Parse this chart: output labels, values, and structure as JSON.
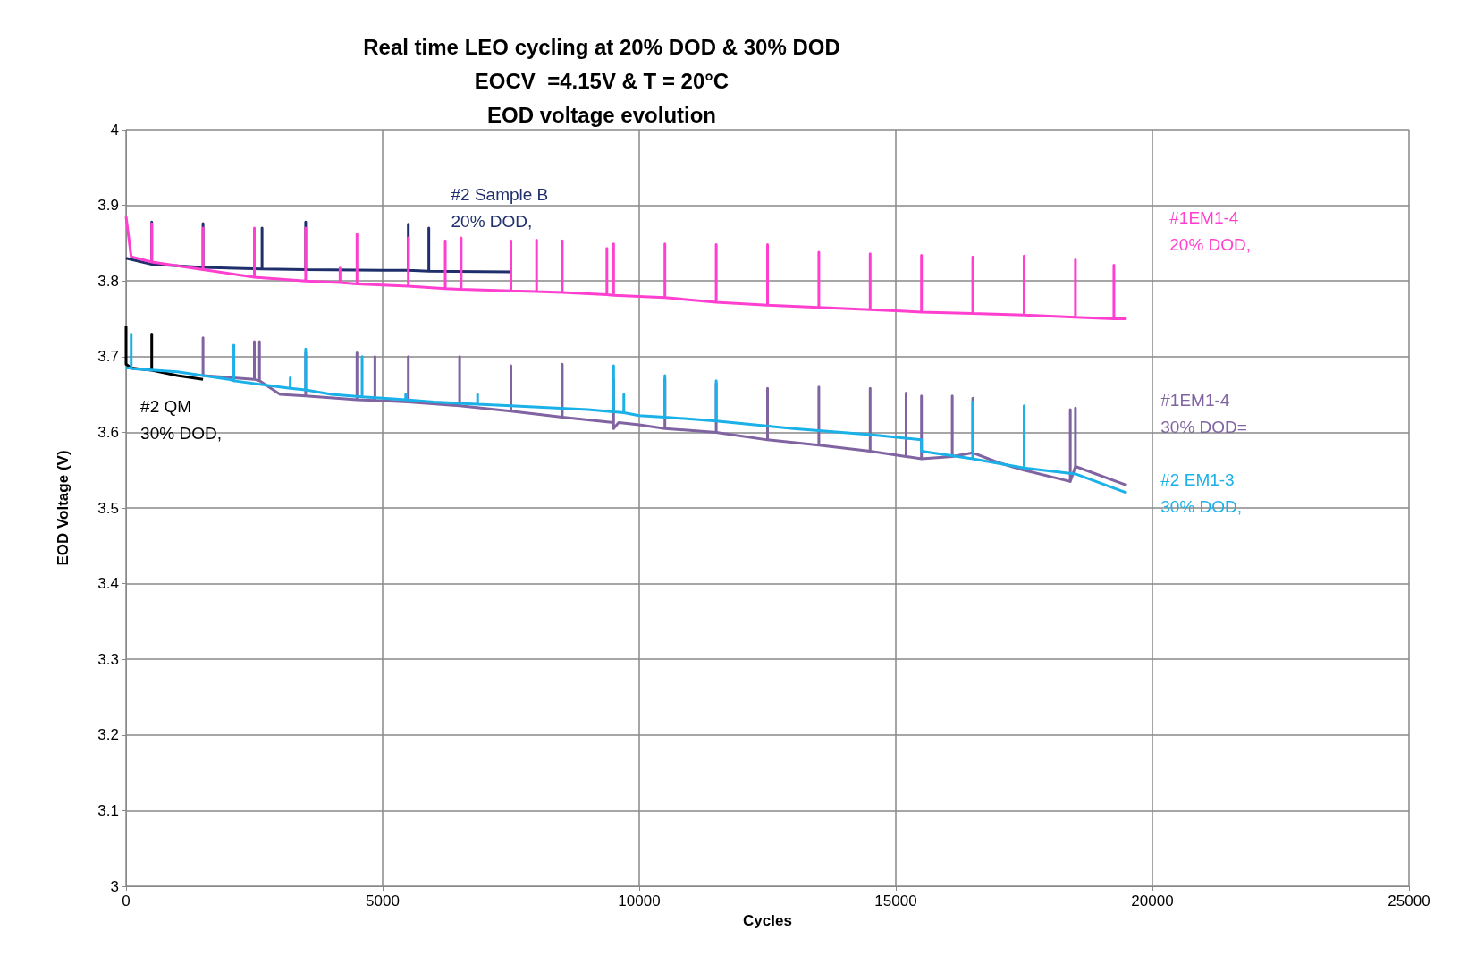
{
  "chart_data": {
    "type": "line",
    "title": "Real time LEO cycling at 20% DOD & 30% DOD\nEOCV  =4.15V & T = 20°C\nEOD voltage evolution",
    "xlabel": "Cycles",
    "ylabel": "EOD Voltage (V)",
    "xlim": [
      0,
      25000
    ],
    "xticks": [
      0,
      5000,
      10000,
      15000,
      20000,
      25000
    ],
    "ylim": [
      3,
      4
    ],
    "yticks": [
      3,
      3.1,
      3.2,
      3.3,
      3.4,
      3.5,
      3.6,
      3.7,
      3.8,
      3.9,
      4
    ],
    "grid": true,
    "legend": false,
    "marker": "none",
    "line_style": "solid",
    "series": [
      {
        "name": "#2 Sample B\n20% DOD,",
        "color": "#1f2f6b",
        "x": [
          0,
          500,
          500,
          500,
          1500,
          1500,
          1500,
          2650,
          2650,
          2650,
          3500,
          3500,
          3500,
          5000,
          5500,
          5500,
          5500,
          5900,
          5900,
          5900,
          7500
        ],
        "values": [
          3.83,
          3.822,
          3.878,
          3.822,
          3.818,
          3.876,
          3.818,
          3.816,
          3.87,
          3.816,
          3.815,
          3.878,
          3.815,
          3.814,
          3.814,
          3.875,
          3.814,
          3.813,
          3.87,
          3.813,
          3.812
        ]
      },
      {
        "name": "#1EM1-4\n20% DOD,",
        "color": "#ff3fcf",
        "x": [
          0,
          100,
          500,
          500,
          500,
          1500,
          1500,
          1500,
          2500,
          2500,
          2500,
          3500,
          3500,
          3500,
          4170,
          4170,
          4170,
          4500,
          4500,
          4500,
          5500,
          5500,
          5500,
          6220,
          6220,
          6220,
          6530,
          6530,
          6530,
          7500,
          7500,
          7500,
          8000,
          8000,
          8000,
          8500,
          8500,
          8500,
          9370,
          9370,
          9370,
          9500,
          9500,
          9500,
          10500,
          10500,
          10500,
          11500,
          11500,
          11500,
          12500,
          12500,
          12500,
          13500,
          13500,
          13500,
          14500,
          14500,
          14500,
          15500,
          15500,
          15500,
          16500,
          16500,
          16500,
          17500,
          17500,
          17500,
          18500,
          18500,
          18500,
          19250,
          19250,
          19250,
          19500
        ],
        "values": [
          3.885,
          3.832,
          3.825,
          3.876,
          3.825,
          3.815,
          3.87,
          3.815,
          3.805,
          3.87,
          3.805,
          3.8,
          3.87,
          3.8,
          3.798,
          3.817,
          3.798,
          3.796,
          3.862,
          3.796,
          3.793,
          3.857,
          3.793,
          3.79,
          3.853,
          3.79,
          3.789,
          3.857,
          3.789,
          3.787,
          3.853,
          3.787,
          3.786,
          3.854,
          3.786,
          3.785,
          3.853,
          3.785,
          3.782,
          3.843,
          3.782,
          3.781,
          3.849,
          3.781,
          3.778,
          3.849,
          3.778,
          3.772,
          3.848,
          3.772,
          3.768,
          3.848,
          3.768,
          3.765,
          3.838,
          3.765,
          3.762,
          3.836,
          3.762,
          3.759,
          3.834,
          3.759,
          3.757,
          3.832,
          3.757,
          3.755,
          3.833,
          3.755,
          3.752,
          3.828,
          3.752,
          3.75,
          3.821,
          3.75,
          3.75
        ]
      },
      {
        "name": "#2 QM\n30% DOD,",
        "color": "#000000",
        "x": [
          0,
          0,
          100,
          500,
          500,
          500,
          1000,
          1500
        ],
        "values": [
          3.74,
          3.69,
          3.685,
          3.682,
          3.73,
          3.682,
          3.675,
          3.67
        ]
      },
      {
        "name": "#1EM1-4\n30% DOD=",
        "color": "#8064a2",
        "x": [
          1500,
          1500,
          1500,
          2500,
          2500,
          2500,
          2600,
          2600,
          2600,
          3000,
          3500,
          3500,
          3500,
          4500,
          4500,
          4500,
          4850,
          4850,
          4850,
          5500,
          5500,
          5500,
          6500,
          6500,
          6500,
          7500,
          7500,
          7500,
          8500,
          8500,
          8500,
          9500,
          9500,
          9500,
          9600,
          10000,
          10500,
          10500,
          10500,
          11500,
          11500,
          11500,
          12500,
          12500,
          12500,
          13500,
          13500,
          13500,
          14500,
          14500,
          14500,
          15200,
          15200,
          15200,
          15500,
          15500,
          15500,
          16100,
          16100,
          16100,
          16500,
          16500,
          16500,
          17000,
          17500,
          18400,
          18400,
          18400,
          18500,
          18500,
          18500,
          19500
        ],
        "values": [
          3.68,
          3.725,
          3.675,
          3.67,
          3.72,
          3.67,
          3.668,
          3.72,
          3.668,
          3.65,
          3.648,
          3.705,
          3.648,
          3.643,
          3.705,
          3.643,
          3.642,
          3.7,
          3.642,
          3.64,
          3.7,
          3.64,
          3.635,
          3.7,
          3.635,
          3.628,
          3.688,
          3.628,
          3.62,
          3.69,
          3.62,
          3.613,
          3.67,
          3.605,
          3.613,
          3.61,
          3.605,
          3.67,
          3.605,
          3.6,
          3.665,
          3.6,
          3.59,
          3.658,
          3.59,
          3.583,
          3.66,
          3.583,
          3.575,
          3.658,
          3.575,
          3.568,
          3.652,
          3.568,
          3.565,
          3.648,
          3.565,
          3.568,
          3.648,
          3.568,
          3.573,
          3.645,
          3.573,
          3.56,
          3.55,
          3.535,
          3.63,
          3.535,
          3.555,
          3.632,
          3.555,
          3.53
        ]
      },
      {
        "name": "#2 EM1-3\n30% DOD,",
        "color": "#1ab0e8",
        "x": [
          0,
          100,
          100,
          100,
          1000,
          2000,
          2100,
          2100,
          2100,
          3000,
          3200,
          3200,
          3200,
          3500,
          3500,
          3500,
          4000,
          4600,
          4600,
          4600,
          5000,
          5450,
          5450,
          5450,
          6000,
          6850,
          6850,
          6850,
          7500,
          9000,
          9500,
          9500,
          9500,
          9700,
          9700,
          9700,
          10000,
          10500,
          10500,
          10500,
          11500,
          11500,
          11500,
          13000,
          14500,
          15500,
          15500,
          16500,
          16500,
          16500,
          17500,
          17500,
          17500,
          18500,
          19500
        ],
        "values": [
          3.685,
          3.685,
          3.73,
          3.684,
          3.68,
          3.67,
          3.668,
          3.715,
          3.668,
          3.66,
          3.658,
          3.672,
          3.658,
          3.656,
          3.71,
          3.656,
          3.65,
          3.647,
          3.7,
          3.647,
          3.645,
          3.643,
          3.65,
          3.643,
          3.64,
          3.637,
          3.65,
          3.637,
          3.635,
          3.63,
          3.627,
          3.688,
          3.627,
          3.626,
          3.65,
          3.626,
          3.622,
          3.62,
          3.675,
          3.62,
          3.615,
          3.668,
          3.615,
          3.605,
          3.597,
          3.59,
          3.575,
          3.565,
          3.64,
          3.565,
          3.553,
          3.635,
          3.553,
          3.545,
          3.52
        ]
      }
    ]
  }
}
